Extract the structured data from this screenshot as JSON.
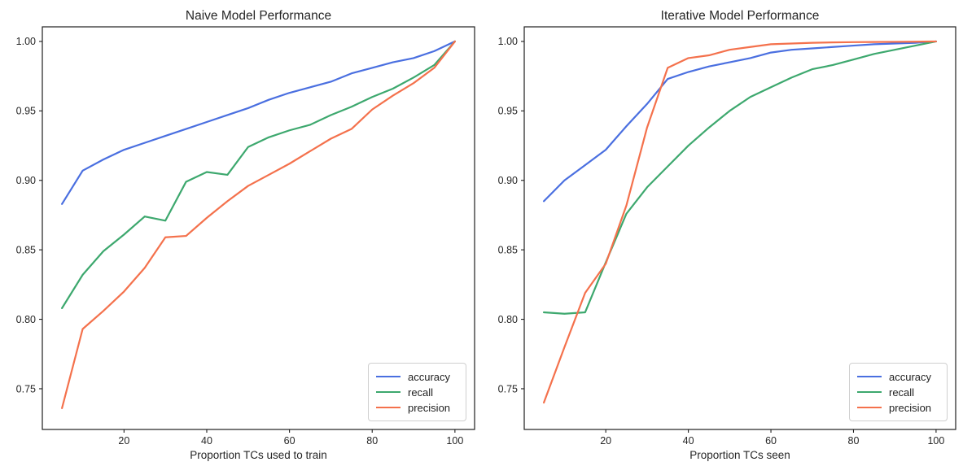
{
  "figure": {
    "background": "#ffffff",
    "text_color": "#262626",
    "spine_color": "#1f1f1f"
  },
  "legend": {
    "labels": [
      "accuracy",
      "recall",
      "precision"
    ]
  },
  "series_colors": {
    "accuracy": "#4a6fe0",
    "recall": "#3da86e",
    "precision": "#f4714c"
  },
  "chart_data": [
    {
      "type": "line",
      "title": "Naive Model Performance",
      "xlabel": "Proportion TCs used to train",
      "ylabel": "",
      "grid": false,
      "legend_position": "lower right",
      "xlim": [
        0.25,
        104.75
      ],
      "ylim": [
        0.7207,
        1.0105
      ],
      "xticks": [
        20,
        40,
        60,
        80,
        100
      ],
      "xtick_labels": [
        "20",
        "40",
        "60",
        "80",
        "100"
      ],
      "yticks": [
        1.0,
        0.95,
        0.9,
        0.85,
        0.8,
        0.75
      ],
      "ytick_labels": [
        "1.00",
        "0.95",
        "0.90",
        "0.85",
        "0.80",
        "0.75"
      ],
      "x": [
        5,
        10,
        15,
        20,
        25,
        30,
        35,
        40,
        45,
        50,
        55,
        60,
        65,
        70,
        75,
        80,
        85,
        90,
        95,
        100
      ],
      "series": [
        {
          "name": "accuracy",
          "values": [
            0.883,
            0.907,
            0.915,
            0.922,
            0.927,
            0.932,
            0.937,
            0.942,
            0.947,
            0.952,
            0.958,
            0.963,
            0.967,
            0.971,
            0.977,
            0.981,
            0.985,
            0.988,
            0.993,
            1.0
          ]
        },
        {
          "name": "recall",
          "values": [
            0.808,
            0.832,
            0.849,
            0.861,
            0.874,
            0.871,
            0.899,
            0.906,
            0.904,
            0.924,
            0.931,
            0.936,
            0.94,
            0.947,
            0.953,
            0.96,
            0.966,
            0.974,
            0.983,
            1.0
          ]
        },
        {
          "name": "precision",
          "values": [
            0.736,
            0.793,
            0.806,
            0.82,
            0.837,
            0.859,
            0.86,
            0.873,
            0.885,
            0.896,
            0.904,
            0.912,
            0.921,
            0.93,
            0.937,
            0.951,
            0.961,
            0.97,
            0.981,
            1.0
          ]
        }
      ]
    },
    {
      "type": "line",
      "title": "Iterative Model Performance",
      "xlabel": "Proportion TCs seen",
      "ylabel": "",
      "grid": false,
      "legend_position": "lower right",
      "xlim": [
        0.25,
        104.75
      ],
      "ylim": [
        0.7207,
        1.0105
      ],
      "xticks": [
        20,
        40,
        60,
        80,
        100
      ],
      "xtick_labels": [
        "20",
        "40",
        "60",
        "80",
        "100"
      ],
      "yticks": [
        1.0,
        0.95,
        0.9,
        0.85,
        0.8,
        0.75
      ],
      "ytick_labels": [
        "1.00",
        "0.95",
        "0.90",
        "0.85",
        "0.80",
        "0.75"
      ],
      "x": [
        5,
        10,
        15,
        20,
        25,
        30,
        35,
        40,
        45,
        50,
        55,
        60,
        65,
        70,
        75,
        80,
        85,
        90,
        95,
        100
      ],
      "series": [
        {
          "name": "accuracy",
          "values": [
            0.885,
            0.9,
            0.911,
            0.922,
            0.939,
            0.955,
            0.973,
            0.978,
            0.982,
            0.985,
            0.988,
            0.992,
            0.994,
            0.995,
            0.996,
            0.997,
            0.998,
            0.9985,
            0.999,
            1.0
          ]
        },
        {
          "name": "recall",
          "values": [
            0.805,
            0.804,
            0.805,
            0.841,
            0.876,
            0.895,
            0.91,
            0.925,
            0.938,
            0.95,
            0.96,
            0.967,
            0.974,
            0.98,
            0.983,
            0.987,
            0.991,
            0.994,
            0.997,
            1.0
          ]
        },
        {
          "name": "precision",
          "values": [
            0.74,
            0.78,
            0.819,
            0.84,
            0.882,
            0.938,
            0.981,
            0.988,
            0.99,
            0.994,
            0.996,
            0.998,
            0.9985,
            0.999,
            0.9993,
            0.9995,
            0.9996,
            0.9997,
            0.9998,
            1.0
          ]
        }
      ]
    }
  ]
}
